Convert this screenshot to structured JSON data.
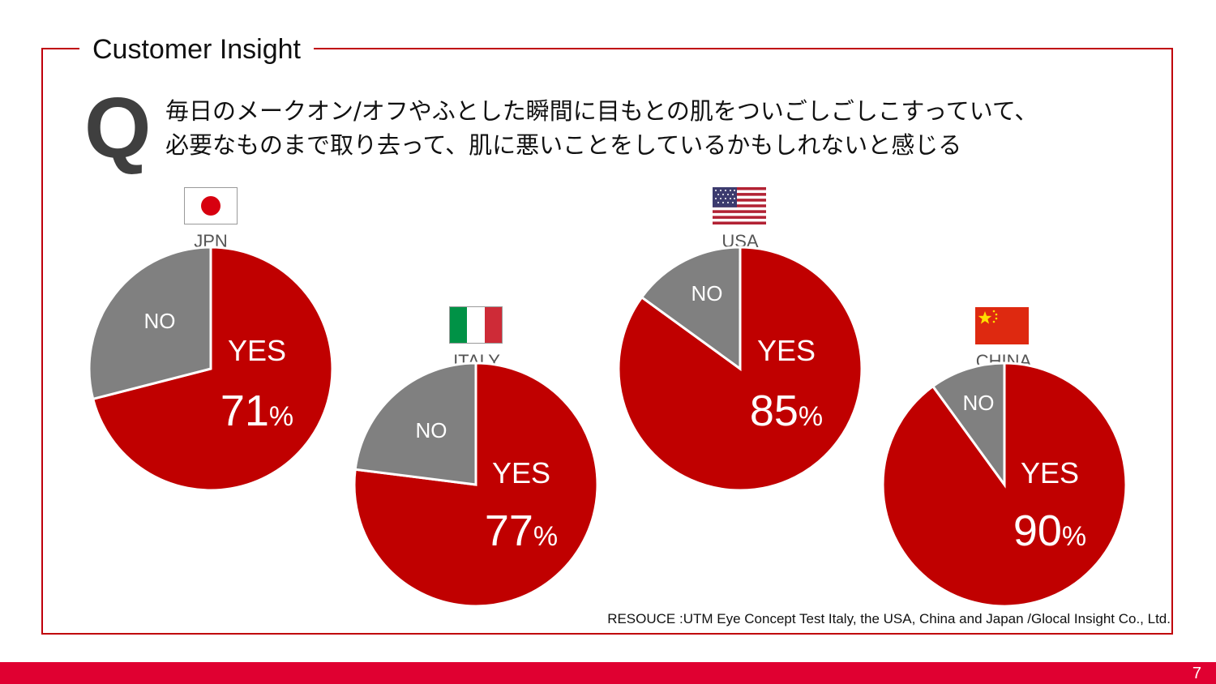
{
  "slide": {
    "title": "Customer Insight",
    "q_letter": "Q",
    "question_lines": [
      "毎日のメークオン/オフやふとした瞬間に目もとの肌をついごしごしこすっていて、",
      "必要なものまで取り去って、肌に悪いことをしているかもしれないと感じる"
    ],
    "source": "RESOUCE :UTM Eye Concept Test Italy, the USA, China and Japan /Glocal Insight Co., Ltd.",
    "page_number": "7"
  },
  "colors": {
    "yes": "#c00000",
    "no": "#808080",
    "frame": "#c0000b",
    "footer": "#e00031"
  },
  "chart_data": [
    {
      "type": "pie",
      "country": "JPN",
      "flag": "japan-flag-icon",
      "categories": [
        "YES",
        "NO"
      ],
      "values": [
        71,
        29
      ],
      "yes_label": "YES",
      "yes_value": "71",
      "percent_sign": "%",
      "no_label": "NO"
    },
    {
      "type": "pie",
      "country": "ITALY",
      "flag": "italy-flag-icon",
      "categories": [
        "YES",
        "NO"
      ],
      "values": [
        77,
        23
      ],
      "yes_label": "YES",
      "yes_value": "77",
      "percent_sign": "%",
      "no_label": "NO"
    },
    {
      "type": "pie",
      "country": "USA",
      "flag": "usa-flag-icon",
      "categories": [
        "YES",
        "NO"
      ],
      "values": [
        85,
        15
      ],
      "yes_label": "YES",
      "yes_value": "85",
      "percent_sign": "%",
      "no_label": "NO"
    },
    {
      "type": "pie",
      "country": "CHINA",
      "flag": "china-flag-icon",
      "categories": [
        "YES",
        "NO"
      ],
      "values": [
        90,
        10
      ],
      "yes_label": "YES",
      "yes_value": "90",
      "percent_sign": "%",
      "no_label": "NO"
    }
  ]
}
